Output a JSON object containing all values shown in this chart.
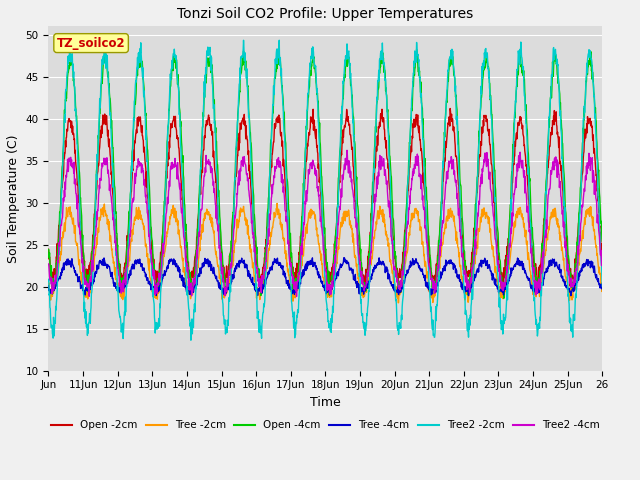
{
  "title": "Tonzi Soil CO2 Profile: Upper Temperatures",
  "xlabel": "Time",
  "ylabel": "Soil Temperature (C)",
  "ylim": [
    10,
    51
  ],
  "yticks": [
    10,
    15,
    20,
    25,
    30,
    35,
    40,
    45,
    50
  ],
  "x_start_day": 10,
  "x_end_day": 26,
  "x_tick_days": [
    10,
    11,
    12,
    13,
    14,
    15,
    16,
    17,
    18,
    19,
    20,
    21,
    22,
    23,
    24,
    25,
    26
  ],
  "x_tick_labels": [
    "Jun",
    "11Jun",
    "12Jun",
    "13Jun",
    "14Jun",
    "15Jun",
    "16Jun",
    "17Jun",
    "18Jun",
    "19Jun",
    "20Jun",
    "21Jun",
    "22Jun",
    "23Jun",
    "24Jun",
    "25Jun",
    "26"
  ],
  "n_points_per_day": 96,
  "series": {
    "open_2cm": {
      "color": "#cc0000",
      "label": "Open -2cm"
    },
    "tree_2cm": {
      "color": "#ff9900",
      "label": "Tree -2cm"
    },
    "open_4cm": {
      "color": "#00cc00",
      "label": "Open -4cm"
    },
    "tree_4cm": {
      "color": "#0000cc",
      "label": "Tree -4cm"
    },
    "tree2_2cm": {
      "color": "#00cccc",
      "label": "Tree2 -2cm"
    },
    "tree2_4cm": {
      "color": "#cc00cc",
      "label": "Tree2 -4cm"
    }
  },
  "watermark_text": "TZ_soilco2",
  "watermark_color": "#cc0000",
  "watermark_bg": "#ffff99",
  "background_color": "#dcdcdc",
  "grid_color": "#ffffff",
  "linewidth": 1.0,
  "figwidth": 6.4,
  "figheight": 4.8,
  "dpi": 100
}
